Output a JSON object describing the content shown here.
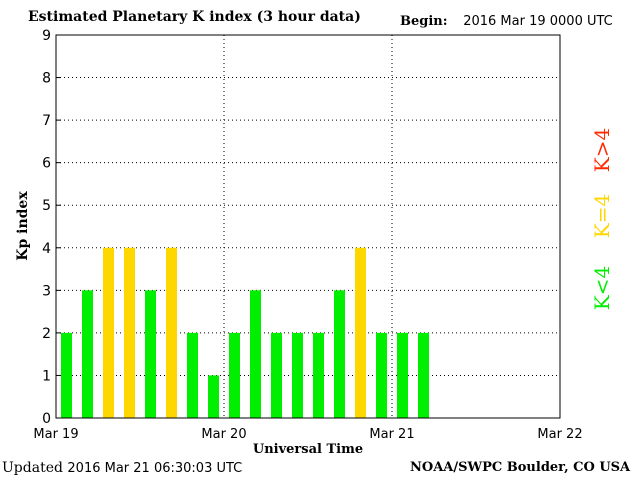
{
  "header": {
    "title": "Estimated Planetary K index (3 hour data)",
    "begin_label": "Begin:",
    "begin_value": "2016 Mar 19 0000 UTC"
  },
  "footer": {
    "updated_label": "Updated",
    "updated_value": "2016 Mar 21 06:30:03 UTC",
    "credit": "NOAA/SWPC Boulder, CO USA"
  },
  "legend": [
    {
      "label": "K<4",
      "color": "#00ee00"
    },
    {
      "label": "K=4",
      "color": "#ffd700"
    },
    {
      "label": "K>4",
      "color": "#ff2a00"
    }
  ],
  "colors": {
    "below": "#00ee00",
    "equal": "#ffd700",
    "above": "#ff2a00"
  },
  "chart_data": {
    "type": "bar",
    "title": "Estimated Planetary K index (3 hour data)",
    "xlabel": "Universal Time",
    "ylabel": "Kp index",
    "ylim": [
      0,
      9
    ],
    "y_ticks": [
      0,
      1,
      2,
      3,
      4,
      5,
      6,
      7,
      8,
      9
    ],
    "x_range_days": [
      0,
      3
    ],
    "x_ticks": [
      "Mar 19",
      "Mar 20",
      "Mar 21",
      "Mar 22"
    ],
    "interval_hours": 3,
    "values": [
      2,
      3,
      4,
      4,
      3,
      4,
      2,
      1,
      2,
      3,
      2,
      2,
      2,
      3,
      4,
      2,
      2,
      2
    ],
    "grid": true,
    "legend_position": "right"
  }
}
